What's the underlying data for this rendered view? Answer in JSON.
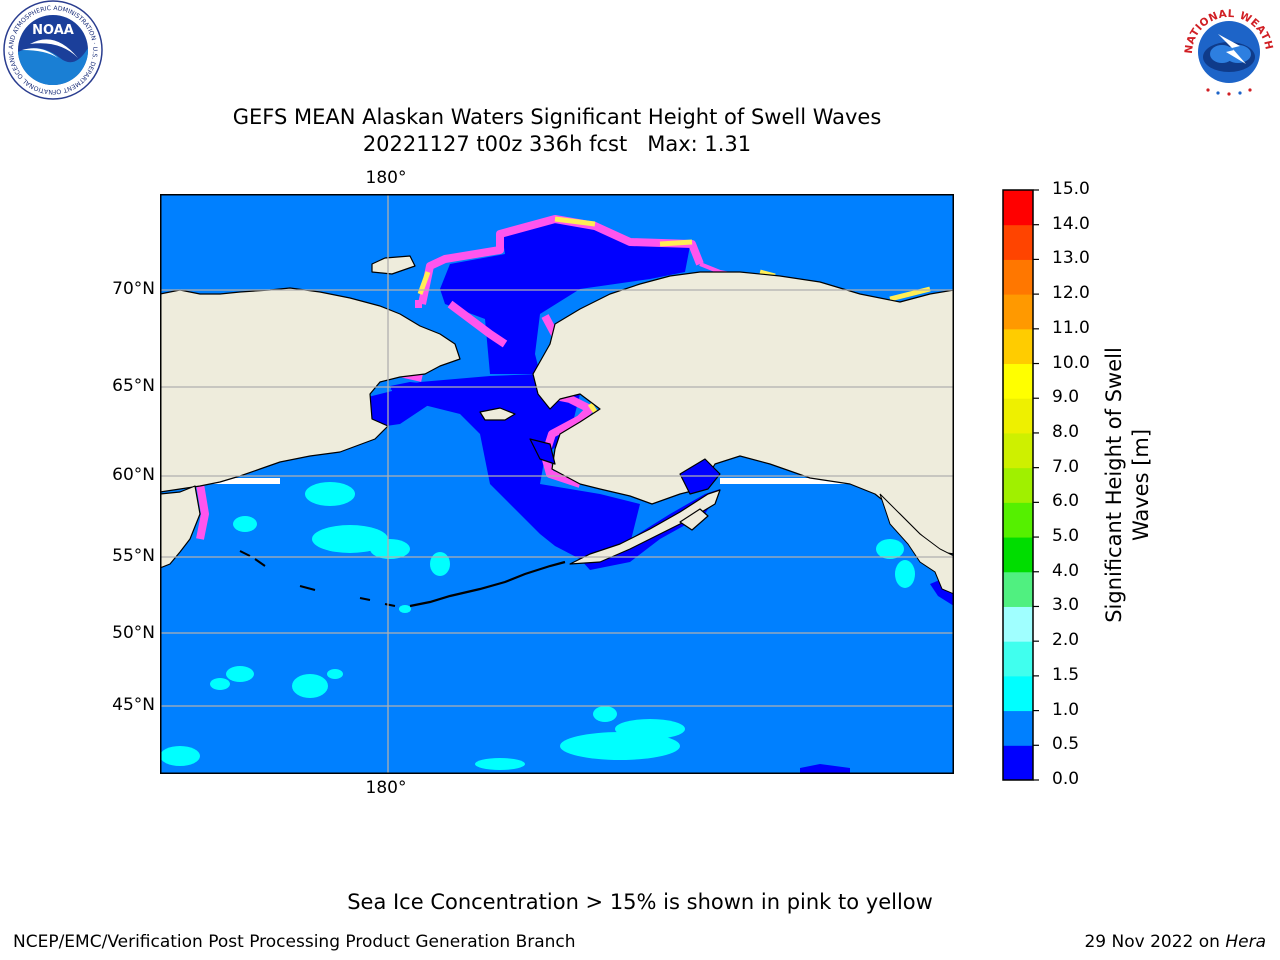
{
  "title_line1": "GEFS MEAN Alaskan Waters Significant Height of Swell Waves",
  "title_line2": "20221127 t00z 336h fcst   Max: 1.31",
  "map": {
    "top_lon_label": "180°",
    "bottom_lon_label": "180°",
    "lat_labels": [
      "70°N",
      "65°N",
      "60°N",
      "55°N",
      "50°N",
      "45°N"
    ],
    "colors": {
      "land": "#eeecdc",
      "ocean_0_5": "#0000ff",
      "ocean_0_5_1": "#0080ff",
      "ocean_1_1_5": "#00ffff",
      "ocean_1_5_2": "#40ffe8",
      "ice_low": "#ff66ff",
      "ice_high": "#ffee66",
      "grid": "#b0b0b0"
    }
  },
  "colorbar": {
    "title_line1": "Significant Height of Swell",
    "title_line2": "Waves [m]",
    "ticks": [
      "0.0",
      "0.5",
      "1.0",
      "1.5",
      "2.0",
      "3.0",
      "4.0",
      "5.0",
      "6.0",
      "7.0",
      "8.0",
      "9.0",
      "10.0",
      "11.0",
      "12.0",
      "13.0",
      "14.0",
      "15.0"
    ],
    "colors": [
      "#0000ff",
      "#0080ff",
      "#00ffff",
      "#40ffee",
      "#a0ffff",
      "#50f080",
      "#00dd00",
      "#55f000",
      "#a0f000",
      "#cef000",
      "#eef000",
      "#ffff00",
      "#ffcc00",
      "#ff9900",
      "#ff7700",
      "#ff4400",
      "#ff0000"
    ]
  },
  "logos": {
    "noaa_text": "NOAA",
    "noaa_ring_text": "NATIONAL OCEANIC AND ATMOSPHERIC ADMINISTRATION · U.S. DEPARTMENT OF COMMERCE",
    "nws_ring_text": "NATIONAL WEATHER SERVICE"
  },
  "note": "Sea Ice Concentration > 15% is shown in pink to yellow",
  "footer_left": "NCEP/EMC/Verification Post Processing Product Generation Branch",
  "footer_right_date": "29 Nov 2022 on ",
  "footer_right_machine": "Hera"
}
